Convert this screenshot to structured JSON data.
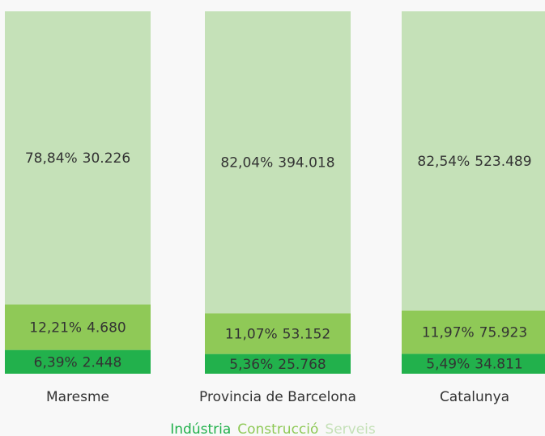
{
  "chart_data": {
    "type": "stacked-percent-bar",
    "categories": [
      "Maresme",
      "Provincia de Barcelona",
      "Catalunya"
    ],
    "series": [
      {
        "name": "Indústria",
        "color": "#22b14c",
        "values": [
          6.39,
          5.36,
          5.49
        ],
        "value_labels": [
          "6,39%",
          "5,36%",
          "5,49%"
        ],
        "counts": [
          2448,
          25768,
          34811
        ],
        "count_labels": [
          "2.448",
          "25.768",
          "34.811"
        ]
      },
      {
        "name": "Construcció",
        "color": "#8fc957",
        "values": [
          12.21,
          11.07,
          11.97
        ],
        "value_labels": [
          "12,21%",
          "11,07%",
          "11,97%"
        ],
        "counts": [
          4680,
          53152,
          75923
        ],
        "count_labels": [
          "4.680",
          "53.152",
          "75.923"
        ]
      },
      {
        "name": "Serveis",
        "color": "#c5e1b8",
        "values": [
          78.84,
          82.04,
          82.54
        ],
        "value_labels": [
          "78,84%",
          "82,04%",
          "82,54%"
        ],
        "counts": [
          30226,
          394018,
          523489
        ],
        "count_labels": [
          "30.226",
          "394.018",
          "523.489"
        ]
      }
    ]
  }
}
